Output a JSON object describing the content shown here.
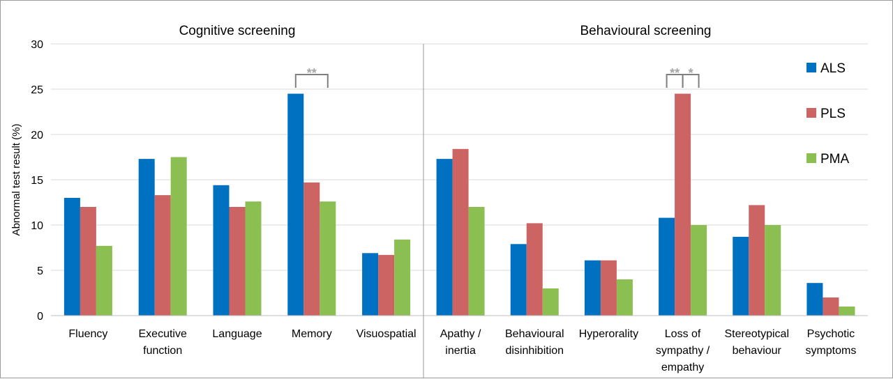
{
  "chart_data": {
    "type": "bar",
    "ylabel": "Abnormal  test result (%)",
    "ylim": [
      0,
      30
    ],
    "yticks": [
      0,
      5,
      10,
      15,
      20,
      25,
      30
    ],
    "grid": true,
    "legend_position": "right",
    "panels": [
      {
        "title": "Cognitive screening",
        "categories": [
          [
            "Fluency"
          ],
          [
            "Executive",
            "function"
          ],
          [
            "Language"
          ],
          [
            "Memory"
          ],
          [
            "Visuospatial"
          ]
        ]
      },
      {
        "title": "Behavioural screening",
        "categories": [
          [
            "Apathy /",
            "inertia"
          ],
          [
            "Behavioural",
            "disinhibition"
          ],
          [
            "Hyperorality"
          ],
          [
            "Loss of",
            "sympathy /",
            "empathy"
          ],
          [
            "Stereotypical",
            "behaviour"
          ],
          [
            "Psychotic",
            "symptoms"
          ]
        ]
      }
    ],
    "series": [
      {
        "name": "ALS",
        "color": "#0070c0",
        "values": [
          13.0,
          17.3,
          14.4,
          24.5,
          6.9,
          17.3,
          7.9,
          6.1,
          10.8,
          8.7,
          3.6
        ]
      },
      {
        "name": "PLS",
        "color": "#cd6464",
        "values": [
          12.0,
          13.3,
          12.0,
          14.7,
          6.7,
          18.4,
          10.2,
          6.1,
          24.5,
          12.2,
          2.0
        ]
      },
      {
        "name": "PMA",
        "color": "#8cbf52",
        "values": [
          7.7,
          17.5,
          12.6,
          12.6,
          8.4,
          12.0,
          3.0,
          4.0,
          10.0,
          10.0,
          1.0
        ]
      }
    ],
    "significance": [
      {
        "category_index": 3,
        "from_series": 0,
        "to_series": 2,
        "label": "**"
      },
      {
        "category_index": 8,
        "from_series": 0,
        "to_series": 1,
        "label": "**"
      },
      {
        "category_index": 8,
        "from_series": 1,
        "to_series": 2,
        "label": "*"
      }
    ]
  }
}
